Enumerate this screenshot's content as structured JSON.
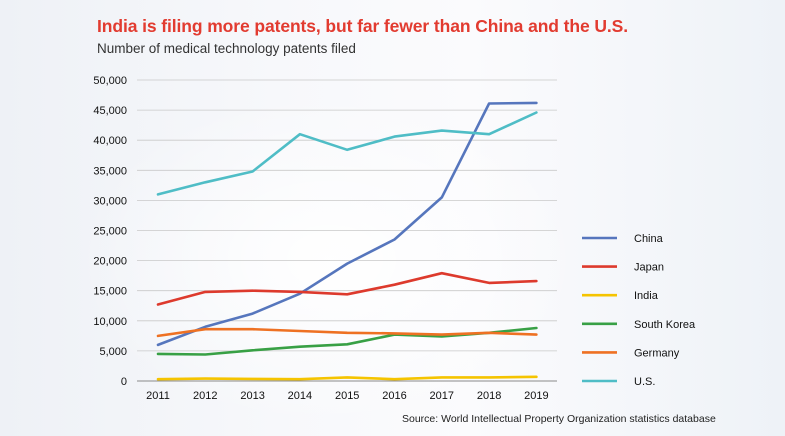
{
  "title": "India is filing more patents, but far fewer than China and the U.S.",
  "subtitle": "Number of medical technology patents filed",
  "source": "Source: World Intellectual Property Organization statistics database",
  "chart_data": {
    "type": "line",
    "title": "India is filing more patents, but far fewer than China and the U.S.",
    "subtitle": "Number of medical technology patents filed",
    "xlabel": "",
    "ylabel": "",
    "x": [
      "2011",
      "2012",
      "2013",
      "2014",
      "2015",
      "2016",
      "2017",
      "2018",
      "2019"
    ],
    "ylim": [
      0,
      50000
    ],
    "yticks": [
      0,
      5000,
      10000,
      15000,
      20000,
      25000,
      30000,
      35000,
      40000,
      45000,
      50000
    ],
    "ytick_labels": [
      "0",
      "5,000",
      "10,000",
      "15,000",
      "20,000",
      "25,000",
      "30,000",
      "35,000",
      "40,000",
      "45,000",
      "50,000"
    ],
    "grid": "horizontal",
    "legend": "right",
    "series": [
      {
        "name": "China",
        "color": "#5676bd",
        "values": [
          6000,
          9000,
          11200,
          14500,
          19500,
          23500,
          30500,
          46100,
          46200
        ]
      },
      {
        "name": "Japan",
        "color": "#dd3a2d",
        "values": [
          12700,
          14800,
          15000,
          14800,
          14400,
          16000,
          17900,
          16300,
          16600
        ]
      },
      {
        "name": "India",
        "color": "#f5c400",
        "values": [
          300,
          400,
          350,
          300,
          600,
          300,
          600,
          600,
          700
        ]
      },
      {
        "name": "South Korea",
        "color": "#38a045",
        "values": [
          4500,
          4400,
          5100,
          5700,
          6100,
          7700,
          7400,
          8000,
          8800
        ]
      },
      {
        "name": "Germany",
        "color": "#ee7123",
        "values": [
          7500,
          8600,
          8600,
          8300,
          8000,
          7900,
          7700,
          8000,
          7700
        ]
      },
      {
        "name": "U.S.",
        "color": "#4fbdc6",
        "values": [
          31000,
          33000,
          34800,
          41000,
          38400,
          40600,
          41600,
          41000,
          44600
        ]
      }
    ],
    "source": "Source: World Intellectual Property Organization statistics database"
  }
}
